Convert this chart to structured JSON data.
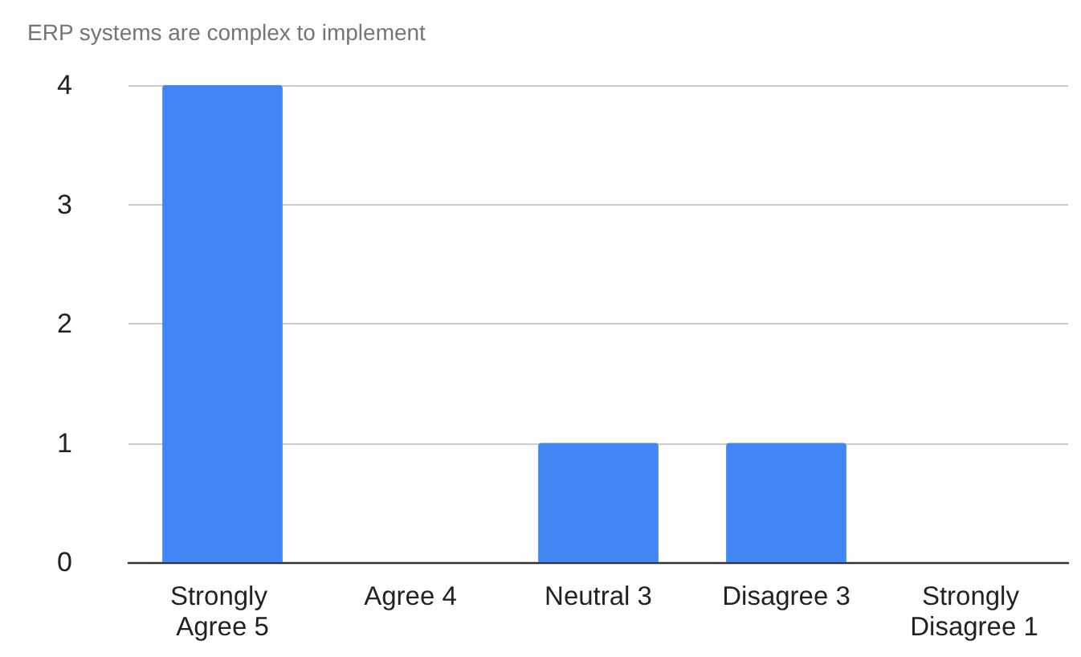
{
  "chart_data": {
    "type": "bar",
    "title": "ERP systems are complex to implement",
    "categories": [
      "Strongly Agree 5",
      "Agree 4",
      "Neutral 3",
      "Disagree 3",
      "Strongly Disagree 1"
    ],
    "values": [
      4,
      0,
      1,
      1,
      0
    ],
    "color": "#4285f4",
    "ylim": [
      0,
      4
    ],
    "yticks": [
      0,
      1,
      2,
      3,
      4
    ],
    "grid": "y"
  }
}
